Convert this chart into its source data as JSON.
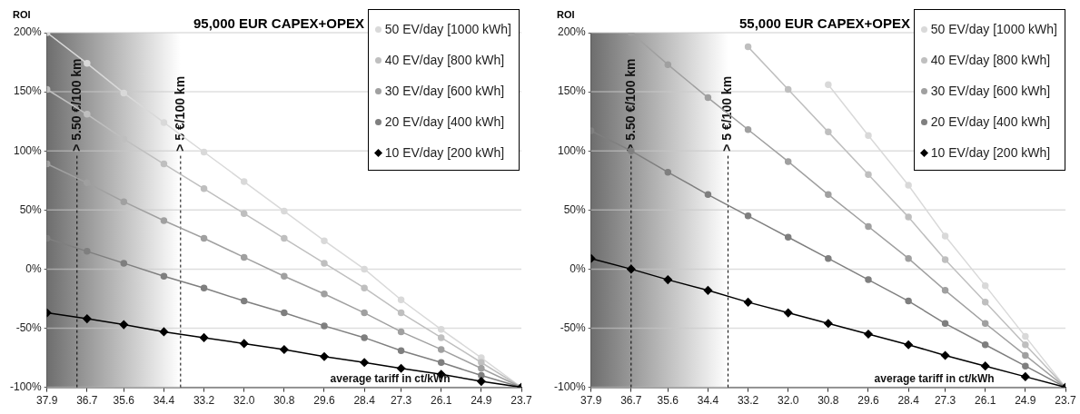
{
  "chart_data": [
    {
      "type": "line",
      "title": "95,000 EUR CAPEX+OPEX",
      "ylabel": "ROI",
      "xlabel": "average tariff in ct/kWh",
      "x": [
        37.9,
        36.7,
        35.6,
        34.4,
        33.2,
        32.0,
        30.8,
        29.6,
        28.4,
        27.3,
        26.1,
        24.9,
        23.7
      ],
      "xlim": [
        37.9,
        23.7
      ],
      "xticks": [
        37.9,
        36.7,
        35.6,
        34.4,
        33.2,
        {
          "value": 32.0,
          "label": "32.0"
        },
        30.8,
        29.6,
        28.4,
        27.3,
        26.1,
        24.9,
        23.7
      ],
      "ylim": [
        -100,
        200
      ],
      "yticks": [
        {
          "value": -100,
          "label": "-100%"
        },
        {
          "value": -50,
          "label": "-50%"
        },
        {
          "value": 0,
          "label": "0%"
        },
        {
          "value": 50,
          "label": "50%"
        },
        {
          "value": 100,
          "label": "100%"
        },
        {
          "value": 150,
          "label": "150%"
        },
        {
          "value": 200,
          "label": "200%"
        }
      ],
      "grid": "y",
      "legend": "top right",
      "line_style": "solid",
      "series": [
        {
          "name": "50 EV/day [1000 kWh]",
          "color": "#d9d9d9",
          "marker": "circle",
          "values": [
            200,
            174,
            149,
            124,
            99,
            74,
            49,
            24,
            0,
            -26,
            -51,
            -75,
            -100
          ]
        },
        {
          "name": "40 EV/day [800 kWh]",
          "color": "#bfbfbf",
          "marker": "circle",
          "values": [
            152,
            131,
            110,
            89,
            68,
            47,
            26,
            5,
            -16,
            -37,
            -58,
            -79,
            -100
          ]
        },
        {
          "name": "30 EV/day [600 kWh]",
          "color": "#a0a0a0",
          "marker": "circle",
          "values": [
            89,
            73,
            57,
            41,
            26,
            10,
            -6,
            -21,
            -37,
            -53,
            -68,
            -84,
            -100
          ]
        },
        {
          "name": "20 EV/day [400 kWh]",
          "color": "#7f7f7f",
          "marker": "circle",
          "values": [
            26,
            15,
            5,
            -6,
            -16,
            -27,
            -37,
            -48,
            -58,
            -69,
            -79,
            -90,
            -100
          ]
        },
        {
          "name": "10 EV/day [200 kWh]",
          "color": "#000000",
          "marker": "diamond",
          "values": [
            -37,
            -42,
            -47,
            -53,
            -58,
            -63,
            -68,
            -74,
            -79,
            -84,
            -89,
            -95,
            -100
          ]
        }
      ],
      "bands": [
        {
          "axis": "x",
          "from": 37.9,
          "to": 33.9,
          "color": "#6e6e6e"
        }
      ],
      "ref_lines": [
        {
          "axis": "x",
          "value": 37.0,
          "label": "> 5.50 €/100 km",
          "line_style": "dashed"
        },
        {
          "axis": "x",
          "value": 33.9,
          "label": "> 5 €/100 km",
          "line_style": "dashed"
        }
      ]
    },
    {
      "type": "line",
      "title": "55,000 EUR CAPEX+OPEX",
      "ylabel": "ROI",
      "xlabel": "average tariff in ct/kWh",
      "x": [
        37.9,
        36.7,
        35.6,
        34.4,
        33.2,
        32.0,
        30.8,
        29.6,
        28.4,
        27.3,
        26.1,
        24.9,
        23.7
      ],
      "xlim": [
        37.9,
        23.7
      ],
      "xticks": [
        37.9,
        36.7,
        35.6,
        34.4,
        33.2,
        {
          "value": 32.0,
          "label": "32.0"
        },
        30.8,
        29.6,
        28.4,
        27.3,
        26.1,
        24.9,
        23.7
      ],
      "ylim": [
        -100,
        200
      ],
      "yticks": [
        {
          "value": -100,
          "label": "-100%"
        },
        {
          "value": -50,
          "label": "-50%"
        },
        {
          "value": 0,
          "label": "0%"
        },
        {
          "value": 50,
          "label": "50%"
        },
        {
          "value": 100,
          "label": "100%"
        },
        {
          "value": 150,
          "label": "150%"
        },
        {
          "value": 200,
          "label": "200%"
        }
      ],
      "grid": "y",
      "legend": "top right",
      "line_style": "solid",
      "series": [
        {
          "name": "50 EV/day [1000 kWh]",
          "color": "#d9d9d9",
          "marker": "circle",
          "values": [
            null,
            null,
            null,
            null,
            null,
            null,
            156,
            113,
            71,
            28,
            -14,
            -57,
            -100
          ]
        },
        {
          "name": "40 EV/day [800 kWh]",
          "color": "#bfbfbf",
          "marker": "circle",
          "values": [
            null,
            null,
            null,
            null,
            188,
            152,
            116,
            80,
            44,
            8,
            -28,
            -64,
            -100
          ]
        },
        {
          "name": "30 EV/day [600 kWh]",
          "color": "#a0a0a0",
          "marker": "circle",
          "values": [
            null,
            200,
            173,
            145,
            118,
            91,
            63,
            36,
            9,
            -18,
            -46,
            -73,
            -100
          ]
        },
        {
          "name": "20 EV/day [400 kWh]",
          "color": "#7f7f7f",
          "marker": "circle",
          "values": [
            117,
            100,
            82,
            63,
            45,
            27,
            9,
            -9,
            -27,
            -46,
            -64,
            -82,
            -100
          ]
        },
        {
          "name": "10 EV/day [200 kWh]",
          "color": "#000000",
          "marker": "diamond",
          "values": [
            9,
            0,
            -9,
            -18,
            -28,
            -37,
            -46,
            -55,
            -64,
            -73,
            -82,
            -91,
            -100
          ]
        }
      ],
      "bands": [
        {
          "axis": "x",
          "from": 37.9,
          "to": 33.8,
          "color": "#6e6e6e"
        }
      ],
      "ref_lines": [
        {
          "axis": "x",
          "value": 36.7,
          "label": "> 5.50 €/100 km",
          "line_style": "dashed"
        },
        {
          "axis": "x",
          "value": 33.8,
          "label": "> 5 €/100 km",
          "line_style": "dashed"
        }
      ]
    }
  ]
}
